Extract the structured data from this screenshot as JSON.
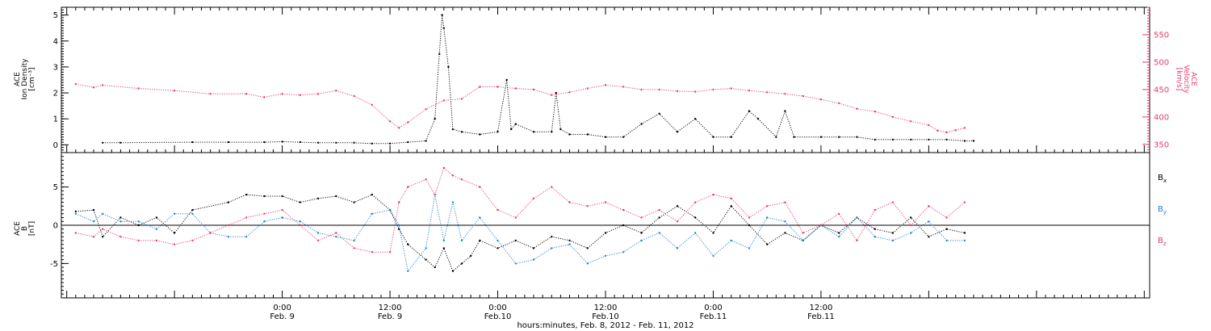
{
  "chart_data": [
    {
      "type": "scatter",
      "panel": "top",
      "ylabel_left": [
        "ACE",
        "Ion Density",
        "[cm⁻³]"
      ],
      "ylabel_right": [
        "ACE",
        "Velocity",
        "[km/s]"
      ],
      "ylim_left": [
        -0.3,
        5.3
      ],
      "ylim_right": [
        335,
        600
      ],
      "yticks_left": [
        "0",
        "1",
        "2",
        "3",
        "4",
        "5"
      ],
      "yticks_right": [
        "350",
        "400",
        "450",
        "500",
        "550"
      ],
      "series": [
        {
          "color": "#000000",
          "axis": "left",
          "points": [
            [
              -20,
              0.08
            ],
            [
              -18,
              0.08
            ],
            [
              -10,
              0.1
            ],
            [
              -6,
              0.1
            ],
            [
              -2,
              0.1
            ],
            [
              0,
              0.12
            ],
            [
              2,
              0.1
            ],
            [
              4,
              0.08
            ],
            [
              6,
              0.08
            ],
            [
              8,
              0.08
            ],
            [
              10,
              0.05
            ],
            [
              12,
              0.05
            ],
            [
              14,
              0.1
            ],
            [
              16,
              0.15
            ],
            [
              17,
              1.0
            ],
            [
              17.5,
              3.5
            ],
            [
              17.8,
              5.0
            ],
            [
              18,
              4.5
            ],
            [
              18.5,
              3.0
            ],
            [
              19,
              0.6
            ],
            [
              20,
              0.5
            ],
            [
              22,
              0.4
            ],
            [
              24,
              0.5
            ],
            [
              25,
              2.5
            ],
            [
              25.5,
              0.6
            ],
            [
              26,
              0.8
            ],
            [
              28,
              0.5
            ],
            [
              30,
              0.5
            ],
            [
              30.5,
              2.0
            ],
            [
              31,
              0.6
            ],
            [
              32,
              0.4
            ],
            [
              34,
              0.4
            ],
            [
              36,
              0.3
            ],
            [
              38,
              0.3
            ],
            [
              40,
              0.8
            ],
            [
              42,
              1.2
            ],
            [
              44,
              0.5
            ],
            [
              46,
              1.0
            ],
            [
              48,
              0.3
            ],
            [
              50,
              0.3
            ],
            [
              52,
              1.3
            ],
            [
              53,
              1.0
            ],
            [
              55,
              0.3
            ],
            [
              56,
              1.3
            ],
            [
              57,
              0.3
            ],
            [
              60,
              0.3
            ],
            [
              62,
              0.3
            ],
            [
              64,
              0.3
            ],
            [
              66,
              0.2
            ],
            [
              68,
              0.2
            ],
            [
              70,
              0.2
            ],
            [
              72,
              0.2
            ],
            [
              74,
              0.2
            ],
            [
              76,
              0.15
            ],
            [
              77,
              0.15
            ]
          ]
        },
        {
          "color": "#e8396a",
          "axis": "right",
          "points": [
            [
              -23,
              460
            ],
            [
              -21,
              454
            ],
            [
              -20,
              458
            ],
            [
              -16,
              452
            ],
            [
              -12,
              448
            ],
            [
              -8,
              442
            ],
            [
              -4,
              442
            ],
            [
              -2,
              436
            ],
            [
              0,
              442
            ],
            [
              2,
              440
            ],
            [
              4,
              442
            ],
            [
              6,
              448
            ],
            [
              8,
              438
            ],
            [
              10,
              422
            ],
            [
              12,
              392
            ],
            [
              13,
              380
            ],
            [
              14,
              390
            ],
            [
              16,
              414
            ],
            [
              18,
              430
            ],
            [
              20,
              433
            ],
            [
              22,
              455
            ],
            [
              24,
              455
            ],
            [
              26,
              452
            ],
            [
              28,
              450
            ],
            [
              30,
              440
            ],
            [
              32,
              445
            ],
            [
              34,
              452
            ],
            [
              36,
              458
            ],
            [
              38,
              455
            ],
            [
              40,
              450
            ],
            [
              42,
              450
            ],
            [
              44,
              447
            ],
            [
              46,
              446
            ],
            [
              48,
              450
            ],
            [
              50,
              452
            ],
            [
              52,
              448
            ],
            [
              54,
              445
            ],
            [
              56,
              442
            ],
            [
              58,
              438
            ],
            [
              60,
              432
            ],
            [
              62,
              425
            ],
            [
              64,
              415
            ],
            [
              66,
              410
            ],
            [
              68,
              400
            ],
            [
              70,
              392
            ],
            [
              72,
              385
            ],
            [
              73,
              375
            ],
            [
              74,
              372
            ],
            [
              75,
              376
            ],
            [
              76,
              380
            ]
          ]
        }
      ]
    },
    {
      "type": "scatter",
      "panel": "bottom",
      "ylabel_left": [
        "ACE",
        "B",
        "[nT]"
      ],
      "ylim": [
        -9.5,
        9.5
      ],
      "yticks": [
        "-5",
        "0",
        "5"
      ],
      "legend_labels": [
        "B",
        "B",
        "B"
      ],
      "legend_subscripts": [
        "x",
        "y",
        "z"
      ],
      "series": [
        {
          "color": "#000000",
          "points": [
            [
              -23,
              1.8
            ],
            [
              -21,
              2.0
            ],
            [
              -20,
              -1.5
            ],
            [
              -18,
              1.0
            ],
            [
              -16,
              0.0
            ],
            [
              -14,
              1.0
            ],
            [
              -12,
              -1.0
            ],
            [
              -10,
              2.0
            ],
            [
              -6,
              3.0
            ],
            [
              -4,
              4.0
            ],
            [
              -2,
              3.8
            ],
            [
              0,
              3.8
            ],
            [
              2,
              3.0
            ],
            [
              4,
              3.5
            ],
            [
              6,
              3.8
            ],
            [
              8,
              3.0
            ],
            [
              10,
              4.0
            ],
            [
              12,
              2.0
            ],
            [
              13,
              -0.5
            ],
            [
              14,
              -2.5
            ],
            [
              16,
              -4.5
            ],
            [
              17,
              -5.5
            ],
            [
              18,
              -3.0
            ],
            [
              19,
              -6.0
            ],
            [
              20,
              -5.0
            ],
            [
              21,
              -4.0
            ],
            [
              22,
              -2.0
            ],
            [
              24,
              -3.0
            ],
            [
              26,
              -2.0
            ],
            [
              28,
              -3.0
            ],
            [
              30,
              -1.5
            ],
            [
              32,
              -2.0
            ],
            [
              34,
              -3.0
            ],
            [
              36,
              -1.0
            ],
            [
              38,
              0.0
            ],
            [
              40,
              -1.0
            ],
            [
              42,
              1.0
            ],
            [
              44,
              2.5
            ],
            [
              46,
              1.0
            ],
            [
              48,
              -1.0
            ],
            [
              50,
              2.5
            ],
            [
              52,
              0.0
            ],
            [
              54,
              -2.5
            ],
            [
              56,
              -1.0
            ],
            [
              58,
              -2.0
            ],
            [
              60,
              0.0
            ],
            [
              62,
              -1.0
            ],
            [
              64,
              1.0
            ],
            [
              66,
              -0.5
            ],
            [
              68,
              -1.0
            ],
            [
              70,
              1.0
            ],
            [
              72,
              -1.5
            ],
            [
              74,
              -0.5
            ],
            [
              76,
              -1.0
            ]
          ]
        },
        {
          "color": "#1e7fd6",
          "points": [
            [
              -23,
              1.5
            ],
            [
              -21,
              0.5
            ],
            [
              -20,
              1.5
            ],
            [
              -18,
              0.5
            ],
            [
              -16,
              0.5
            ],
            [
              -14,
              -0.5
            ],
            [
              -12,
              1.5
            ],
            [
              -10,
              1.5
            ],
            [
              -8,
              -1.0
            ],
            [
              -6,
              -1.5
            ],
            [
              -4,
              -1.5
            ],
            [
              -2,
              0.5
            ],
            [
              0,
              1.0
            ],
            [
              2,
              0.5
            ],
            [
              4,
              -1.0
            ],
            [
              6,
              -1.5
            ],
            [
              8,
              -2.0
            ],
            [
              10,
              1.5
            ],
            [
              12,
              2.0
            ],
            [
              13,
              0.0
            ],
            [
              14,
              -6.0
            ],
            [
              16,
              -3.0
            ],
            [
              17,
              4.0
            ],
            [
              18,
              -2.0
            ],
            [
              19,
              3.0
            ],
            [
              20,
              -2.0
            ],
            [
              22,
              1.0
            ],
            [
              24,
              -2.0
            ],
            [
              26,
              -5.0
            ],
            [
              28,
              -4.5
            ],
            [
              30,
              -3.0
            ],
            [
              32,
              -2.5
            ],
            [
              34,
              -5.0
            ],
            [
              36,
              -4.0
            ],
            [
              38,
              -3.5
            ],
            [
              40,
              -2.0
            ],
            [
              42,
              -1.0
            ],
            [
              44,
              -3.0
            ],
            [
              46,
              -1.0
            ],
            [
              48,
              -4.0
            ],
            [
              50,
              -2.0
            ],
            [
              52,
              -3.0
            ],
            [
              54,
              1.0
            ],
            [
              56,
              0.5
            ],
            [
              58,
              -2.0
            ],
            [
              60,
              0.0
            ],
            [
              62,
              -1.5
            ],
            [
              64,
              1.0
            ],
            [
              66,
              -1.5
            ],
            [
              68,
              -2.0
            ],
            [
              70,
              -1.0
            ],
            [
              72,
              0.5
            ],
            [
              74,
              -2.0
            ],
            [
              76,
              -2.0
            ]
          ]
        },
        {
          "color": "#e8396a",
          "points": [
            [
              -23,
              -1.0
            ],
            [
              -21,
              -1.5
            ],
            [
              -20,
              -0.5
            ],
            [
              -18,
              -1.5
            ],
            [
              -16,
              -2.0
            ],
            [
              -14,
              -2.0
            ],
            [
              -12,
              -2.5
            ],
            [
              -10,
              -2.0
            ],
            [
              -8,
              -1.0
            ],
            [
              -6,
              0.0
            ],
            [
              -4,
              1.0
            ],
            [
              -2,
              1.5
            ],
            [
              0,
              2.0
            ],
            [
              2,
              0.0
            ],
            [
              4,
              -2.0
            ],
            [
              6,
              -1.0
            ],
            [
              8,
              -3.0
            ],
            [
              10,
              -3.5
            ],
            [
              12,
              -3.5
            ],
            [
              13,
              3.0
            ],
            [
              14,
              5.0
            ],
            [
              16,
              6.0
            ],
            [
              17,
              4.0
            ],
            [
              18,
              7.5
            ],
            [
              19,
              6.5
            ],
            [
              20,
              6.0
            ],
            [
              22,
              5.0
            ],
            [
              24,
              2.0
            ],
            [
              26,
              1.0
            ],
            [
              28,
              3.5
            ],
            [
              30,
              5.0
            ],
            [
              32,
              3.0
            ],
            [
              34,
              2.5
            ],
            [
              36,
              3.0
            ],
            [
              38,
              2.0
            ],
            [
              40,
              1.0
            ],
            [
              42,
              2.0
            ],
            [
              44,
              0.5
            ],
            [
              46,
              3.0
            ],
            [
              48,
              4.0
            ],
            [
              50,
              3.5
            ],
            [
              52,
              1.0
            ],
            [
              54,
              2.5
            ],
            [
              56,
              3.0
            ],
            [
              58,
              -1.0
            ],
            [
              60,
              0.0
            ],
            [
              62,
              1.5
            ],
            [
              64,
              -2.0
            ],
            [
              66,
              2.0
            ],
            [
              68,
              3.0
            ],
            [
              70,
              0.0
            ],
            [
              72,
              2.5
            ],
            [
              74,
              1.0
            ],
            [
              76,
              3.0
            ]
          ]
        }
      ]
    }
  ],
  "x_axis": {
    "xlim": [
      -24.6,
      96.6
    ],
    "ticks": [
      {
        "x": 0,
        "time": "0:00",
        "date": "Feb. 9"
      },
      {
        "x": 12,
        "time": "12:00",
        "date": "Feb. 9"
      },
      {
        "x": 24,
        "time": "0:00",
        "date": "Feb.10"
      },
      {
        "x": 36,
        "time": "12:00",
        "date": "Feb.10"
      },
      {
        "x": 48,
        "time": "0:00",
        "date": "Feb.11"
      },
      {
        "x": 60,
        "time": "12:00",
        "date": "Feb.11"
      }
    ],
    "title": "hours:minutes, Feb.  8, 2012 - Feb. 11, 2012"
  },
  "colors": {
    "density": "#000000",
    "velocity": "#e8396a",
    "bx": "#000000",
    "by": "#1e7fd6",
    "bz": "#e8396a"
  }
}
